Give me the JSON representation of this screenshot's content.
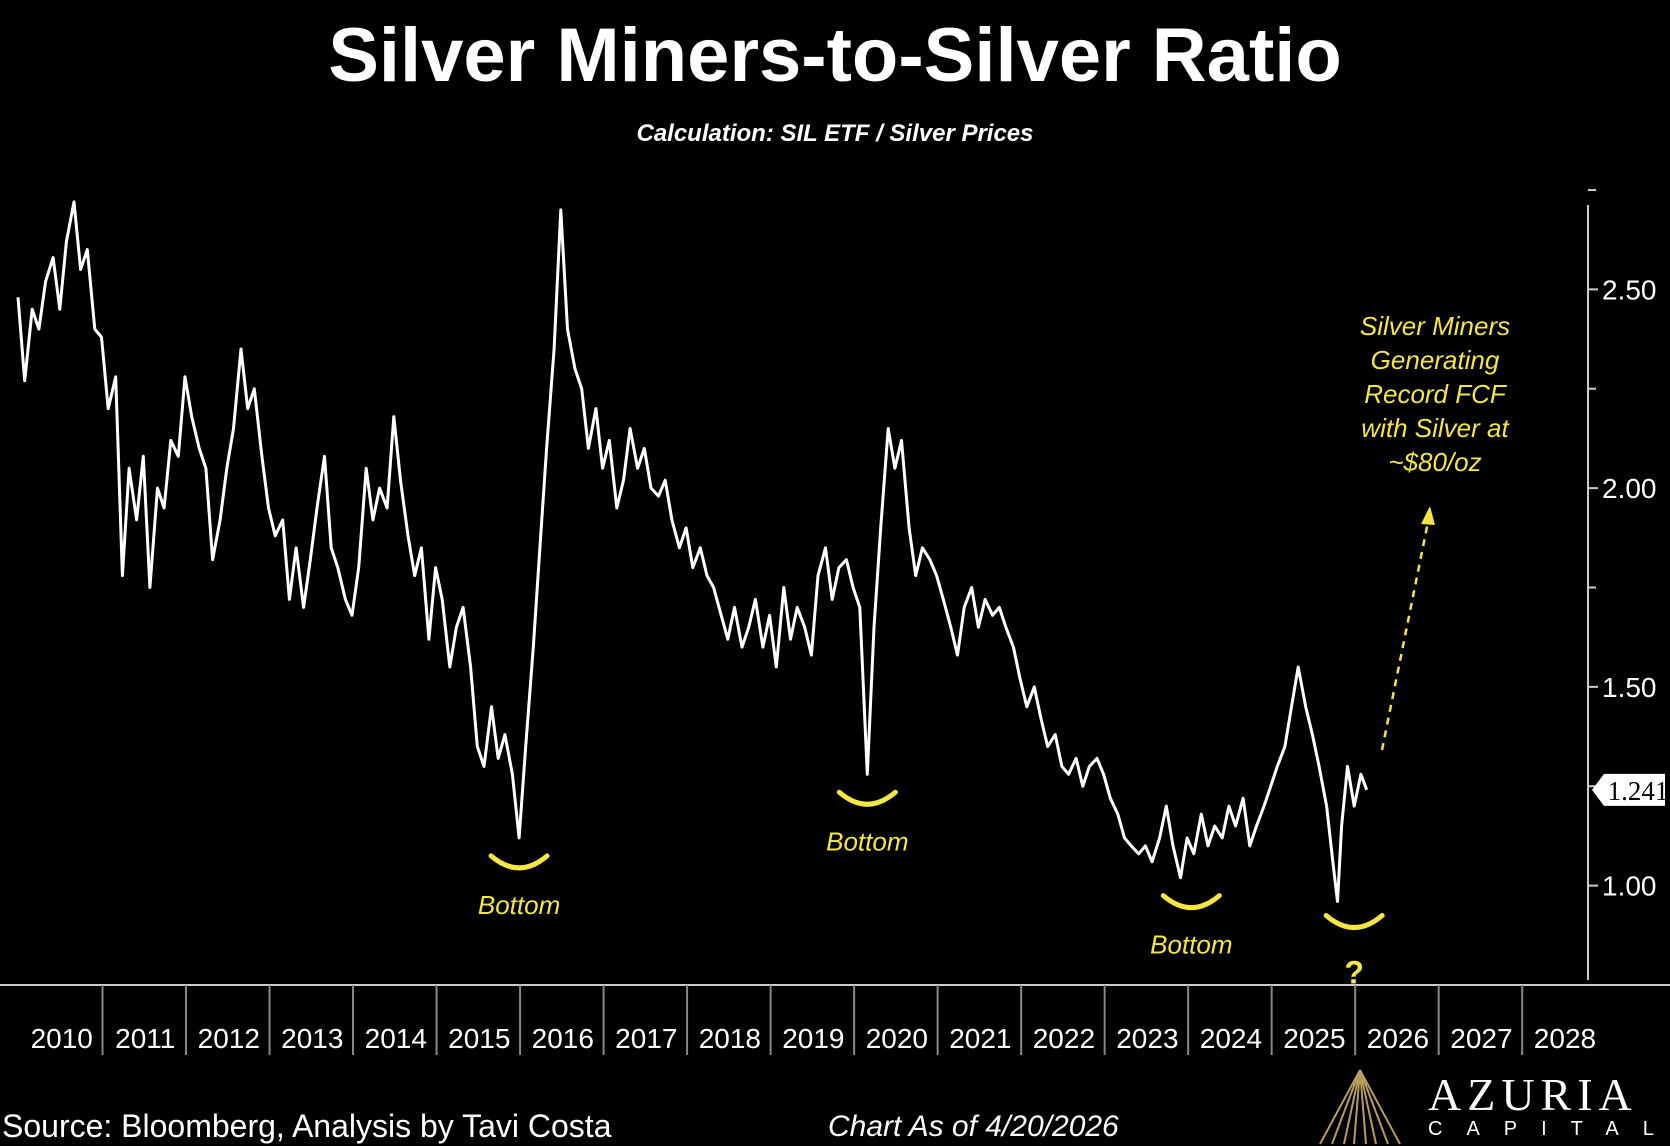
{
  "chart_data": {
    "type": "line",
    "title": "Silver Miners-to-Silver Ratio",
    "subtitle": "Calculation: SIL ETF / Silver Prices",
    "x_tick_labels": [
      "2010",
      "2011",
      "2012",
      "2013",
      "2014",
      "2015",
      "2016",
      "2017",
      "2018",
      "2019",
      "2020",
      "2021",
      "2022",
      "2023",
      "2024",
      "2025",
      "2026",
      "2027",
      "2028"
    ],
    "y_tick_labels": [
      "2.50",
      "2.00",
      "1.50",
      "1.00"
    ],
    "ylim": [
      0.75,
      2.75
    ],
    "xlim": [
      2010.0,
      2028.8
    ],
    "last_value_label": "1.241",
    "series": [
      {
        "points": [
          [
            2010.0,
            2.48
          ],
          [
            2010.08,
            2.27
          ],
          [
            2010.17,
            2.45
          ],
          [
            2010.25,
            2.4
          ],
          [
            2010.33,
            2.52
          ],
          [
            2010.42,
            2.58
          ],
          [
            2010.5,
            2.45
          ],
          [
            2010.58,
            2.62
          ],
          [
            2010.67,
            2.72
          ],
          [
            2010.75,
            2.55
          ],
          [
            2010.83,
            2.6
          ],
          [
            2010.92,
            2.4
          ],
          [
            2011.0,
            2.38
          ],
          [
            2011.08,
            2.2
          ],
          [
            2011.17,
            2.28
          ],
          [
            2011.25,
            1.78
          ],
          [
            2011.33,
            2.05
          ],
          [
            2011.42,
            1.92
          ],
          [
            2011.5,
            2.08
          ],
          [
            2011.58,
            1.75
          ],
          [
            2011.67,
            2.0
          ],
          [
            2011.75,
            1.95
          ],
          [
            2011.83,
            2.12
          ],
          [
            2011.92,
            2.08
          ],
          [
            2012.0,
            2.28
          ],
          [
            2012.08,
            2.18
          ],
          [
            2012.17,
            2.1
          ],
          [
            2012.25,
            2.05
          ],
          [
            2012.33,
            1.82
          ],
          [
            2012.42,
            1.92
          ],
          [
            2012.5,
            2.05
          ],
          [
            2012.58,
            2.15
          ],
          [
            2012.67,
            2.35
          ],
          [
            2012.75,
            2.2
          ],
          [
            2012.83,
            2.25
          ],
          [
            2012.92,
            2.08
          ],
          [
            2013.0,
            1.95
          ],
          [
            2013.08,
            1.88
          ],
          [
            2013.17,
            1.92
          ],
          [
            2013.25,
            1.72
          ],
          [
            2013.33,
            1.85
          ],
          [
            2013.42,
            1.7
          ],
          [
            2013.5,
            1.82
          ],
          [
            2013.58,
            1.95
          ],
          [
            2013.67,
            2.08
          ],
          [
            2013.75,
            1.85
          ],
          [
            2013.83,
            1.8
          ],
          [
            2013.92,
            1.72
          ],
          [
            2014.0,
            1.68
          ],
          [
            2014.08,
            1.8
          ],
          [
            2014.17,
            2.05
          ],
          [
            2014.25,
            1.92
          ],
          [
            2014.33,
            2.0
          ],
          [
            2014.42,
            1.95
          ],
          [
            2014.5,
            2.18
          ],
          [
            2014.58,
            2.02
          ],
          [
            2014.67,
            1.88
          ],
          [
            2014.75,
            1.78
          ],
          [
            2014.83,
            1.85
          ],
          [
            2014.92,
            1.62
          ],
          [
            2015.0,
            1.8
          ],
          [
            2015.08,
            1.72
          ],
          [
            2015.17,
            1.55
          ],
          [
            2015.25,
            1.65
          ],
          [
            2015.33,
            1.7
          ],
          [
            2015.42,
            1.55
          ],
          [
            2015.5,
            1.35
          ],
          [
            2015.58,
            1.3
          ],
          [
            2015.67,
            1.45
          ],
          [
            2015.75,
            1.32
          ],
          [
            2015.83,
            1.38
          ],
          [
            2015.92,
            1.28
          ],
          [
            2016.0,
            1.12
          ],
          [
            2016.08,
            1.35
          ],
          [
            2016.17,
            1.6
          ],
          [
            2016.25,
            1.85
          ],
          [
            2016.33,
            2.1
          ],
          [
            2016.42,
            2.35
          ],
          [
            2016.5,
            2.7
          ],
          [
            2016.58,
            2.4
          ],
          [
            2016.67,
            2.3
          ],
          [
            2016.75,
            2.25
          ],
          [
            2016.83,
            2.1
          ],
          [
            2016.92,
            2.2
          ],
          [
            2017.0,
            2.05
          ],
          [
            2017.08,
            2.12
          ],
          [
            2017.17,
            1.95
          ],
          [
            2017.25,
            2.02
          ],
          [
            2017.33,
            2.15
          ],
          [
            2017.42,
            2.05
          ],
          [
            2017.5,
            2.1
          ],
          [
            2017.58,
            2.0
          ],
          [
            2017.67,
            1.98
          ],
          [
            2017.75,
            2.02
          ],
          [
            2017.83,
            1.92
          ],
          [
            2017.92,
            1.85
          ],
          [
            2018.0,
            1.9
          ],
          [
            2018.08,
            1.8
          ],
          [
            2018.17,
            1.85
          ],
          [
            2018.25,
            1.78
          ],
          [
            2018.33,
            1.75
          ],
          [
            2018.42,
            1.68
          ],
          [
            2018.5,
            1.62
          ],
          [
            2018.58,
            1.7
          ],
          [
            2018.67,
            1.6
          ],
          [
            2018.75,
            1.65
          ],
          [
            2018.83,
            1.72
          ],
          [
            2018.92,
            1.6
          ],
          [
            2019.0,
            1.68
          ],
          [
            2019.08,
            1.55
          ],
          [
            2019.17,
            1.75
          ],
          [
            2019.25,
            1.62
          ],
          [
            2019.33,
            1.7
          ],
          [
            2019.42,
            1.65
          ],
          [
            2019.5,
            1.58
          ],
          [
            2019.58,
            1.78
          ],
          [
            2019.67,
            1.85
          ],
          [
            2019.75,
            1.72
          ],
          [
            2019.83,
            1.8
          ],
          [
            2019.92,
            1.82
          ],
          [
            2020.0,
            1.75
          ],
          [
            2020.08,
            1.7
          ],
          [
            2020.17,
            1.28
          ],
          [
            2020.25,
            1.65
          ],
          [
            2020.33,
            1.9
          ],
          [
            2020.42,
            2.15
          ],
          [
            2020.5,
            2.05
          ],
          [
            2020.58,
            2.12
          ],
          [
            2020.67,
            1.9
          ],
          [
            2020.75,
            1.78
          ],
          [
            2020.83,
            1.85
          ],
          [
            2020.92,
            1.82
          ],
          [
            2021.0,
            1.78
          ],
          [
            2021.08,
            1.72
          ],
          [
            2021.17,
            1.65
          ],
          [
            2021.25,
            1.58
          ],
          [
            2021.33,
            1.7
          ],
          [
            2021.42,
            1.75
          ],
          [
            2021.5,
            1.65
          ],
          [
            2021.58,
            1.72
          ],
          [
            2021.67,
            1.68
          ],
          [
            2021.75,
            1.7
          ],
          [
            2021.83,
            1.65
          ],
          [
            2021.92,
            1.6
          ],
          [
            2022.0,
            1.52
          ],
          [
            2022.08,
            1.45
          ],
          [
            2022.17,
            1.5
          ],
          [
            2022.25,
            1.42
          ],
          [
            2022.33,
            1.35
          ],
          [
            2022.42,
            1.38
          ],
          [
            2022.5,
            1.3
          ],
          [
            2022.58,
            1.28
          ],
          [
            2022.67,
            1.32
          ],
          [
            2022.75,
            1.25
          ],
          [
            2022.83,
            1.3
          ],
          [
            2022.92,
            1.32
          ],
          [
            2023.0,
            1.28
          ],
          [
            2023.08,
            1.22
          ],
          [
            2023.17,
            1.18
          ],
          [
            2023.25,
            1.12
          ],
          [
            2023.33,
            1.1
          ],
          [
            2023.42,
            1.08
          ],
          [
            2023.5,
            1.1
          ],
          [
            2023.58,
            1.06
          ],
          [
            2023.67,
            1.12
          ],
          [
            2023.75,
            1.2
          ],
          [
            2023.83,
            1.1
          ],
          [
            2023.92,
            1.02
          ],
          [
            2024.0,
            1.12
          ],
          [
            2024.08,
            1.08
          ],
          [
            2024.17,
            1.18
          ],
          [
            2024.25,
            1.1
          ],
          [
            2024.33,
            1.15
          ],
          [
            2024.42,
            1.12
          ],
          [
            2024.5,
            1.2
          ],
          [
            2024.58,
            1.15
          ],
          [
            2024.67,
            1.22
          ],
          [
            2024.75,
            1.1
          ],
          [
            2024.83,
            1.15
          ],
          [
            2024.92,
            1.2
          ],
          [
            2025.0,
            1.25
          ],
          [
            2025.08,
            1.3
          ],
          [
            2025.17,
            1.35
          ],
          [
            2025.25,
            1.45
          ],
          [
            2025.33,
            1.55
          ],
          [
            2025.42,
            1.45
          ],
          [
            2025.5,
            1.38
          ],
          [
            2025.58,
            1.3
          ],
          [
            2025.67,
            1.2
          ],
          [
            2025.75,
            1.05
          ],
          [
            2025.8,
            0.96
          ],
          [
            2025.85,
            1.15
          ],
          [
            2025.92,
            1.3
          ],
          [
            2026.0,
            1.2
          ],
          [
            2026.08,
            1.28
          ],
          [
            2026.15,
            1.241
          ]
        ]
      }
    ],
    "annotations": [
      {
        "text": "Bottom",
        "x": 2016.0,
        "y": 1.1
      },
      {
        "text": "Bottom",
        "x": 2020.17,
        "y": 1.26
      },
      {
        "text": "Bottom",
        "x": 2024.05,
        "y": 1.0
      },
      {
        "text": "?",
        "x": 2026.0,
        "y": 0.95
      }
    ],
    "callout": {
      "lines": [
        "Silver Miners",
        "Generating",
        "Record FCF",
        "with Silver at",
        "~$80/oz"
      ]
    },
    "colors": {
      "background": "#000000",
      "line": "#ffffff",
      "annotation": "#f5e642"
    }
  },
  "footer": {
    "source": "Source: Bloomberg, Analysis by Tavi Costa",
    "date": "Chart As of 4/20/2026"
  },
  "logo": {
    "name": "AZURIA",
    "sub": "CAPITAL"
  }
}
